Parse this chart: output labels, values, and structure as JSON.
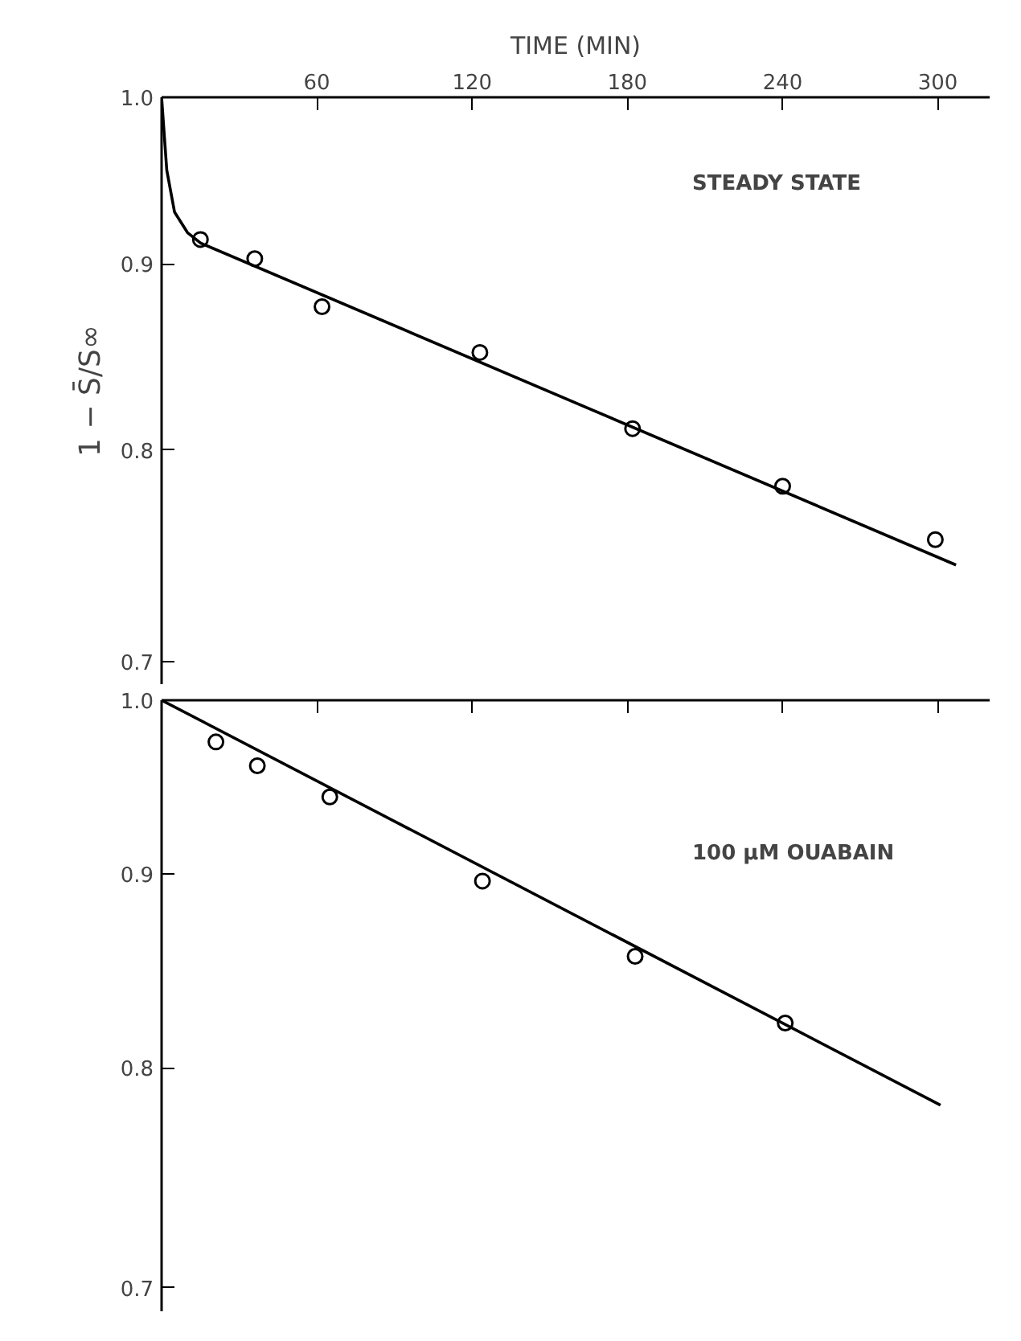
{
  "chart_data": [
    {
      "type": "scatter",
      "xlabel": "TIME (MIN)",
      "ylabel": "1 − S̄/S∞",
      "annotations": [
        "STEADY STATE"
      ],
      "log": "y",
      "marker": "circle",
      "grid": false,
      "xlim": [
        0,
        320
      ],
      "ylim": [
        0.69,
        1.0
      ],
      "xticks": [
        60,
        120,
        180,
        240,
        300
      ],
      "yticks": [
        0.7,
        0.8,
        0.9,
        {
          "value": 1.0,
          "label": "1.0"
        }
      ],
      "series": [
        {
          "color": "#000000",
          "x": [
            15,
            36,
            62,
            123,
            182,
            240,
            299
          ],
          "values": [
            0.914,
            0.903,
            0.876,
            0.851,
            0.811,
            0.782,
            0.756
          ]
        },
        {
          "type": "line",
          "marker": "none",
          "color": "#000000",
          "x": [
            0,
            2,
            5,
            10,
            15,
            307
          ],
          "values": [
            1.0,
            0.955,
            0.93,
            0.918,
            0.912,
            0.744
          ]
        }
      ]
    },
    {
      "type": "scatter",
      "annotations": [
        "100 μM OUABAIN"
      ],
      "log": "y",
      "marker": "circle",
      "grid": false,
      "tick_labels": "y",
      "xlim": [
        0,
        320
      ],
      "ylim": [
        0.69,
        1.0
      ],
      "xticks": [
        60,
        120,
        180,
        240,
        300
      ],
      "yticks": [
        0.7,
        0.8,
        0.9,
        {
          "value": 1.0,
          "label": "1.0"
        }
      ],
      "series": [
        {
          "color": "#000000",
          "x": [
            21,
            37,
            65,
            124,
            183,
            241
          ],
          "values": [
            0.975,
            0.961,
            0.943,
            0.896,
            0.856,
            0.822
          ]
        },
        {
          "type": "line",
          "marker": "none",
          "color": "#000000",
          "x": [
            0,
            301
          ],
          "values": [
            1.0,
            0.782
          ]
        }
      ]
    }
  ]
}
